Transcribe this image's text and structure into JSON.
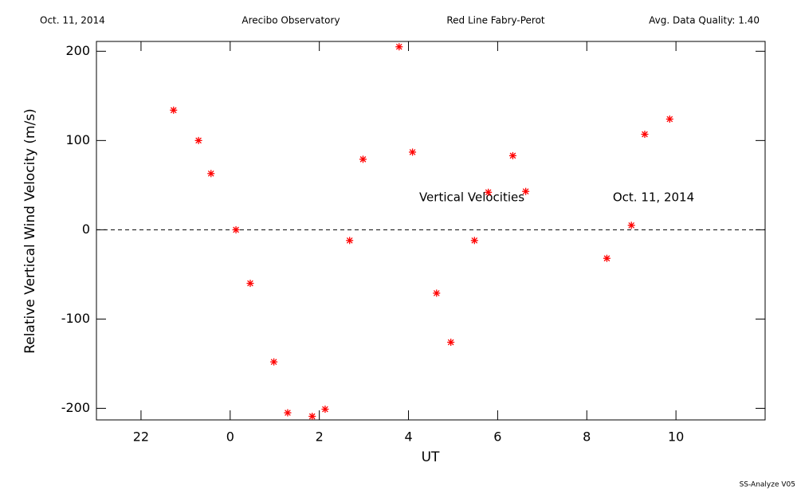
{
  "chart_data": {
    "type": "scatter",
    "header": [
      "Oct. 11, 2014",
      "Arecibo Observatory",
      "Red Line Fabry-Perot",
      "Avg. Data Quality: 1.40"
    ],
    "x_label": "UT",
    "y_label": "Relative Vertical Wind Velocity (m/s)",
    "annotations": [
      "Vertical Velocities",
      "Oct. 11, 2014"
    ],
    "footer": "SS-Analyze V05",
    "color": "#ff0000",
    "reference_line": 0,
    "xlim": [
      -3,
      12
    ],
    "ylim": [
      -213,
      211
    ],
    "xticks": [
      {
        "value": -2,
        "label": "22"
      },
      0,
      2,
      4,
      6,
      8,
      10
    ],
    "yticks": [
      -200,
      -100,
      0,
      100,
      200
    ],
    "x": [
      -1.27,
      -0.71,
      -0.43,
      0.13,
      0.45,
      0.98,
      1.29,
      1.84,
      2.13,
      2.68,
      2.98,
      3.79,
      4.09,
      4.63,
      4.95,
      5.48,
      5.79,
      6.34,
      6.63,
      8.45,
      9.0,
      9.3,
      9.86
    ],
    "values": [
      134,
      100,
      63,
      0,
      -60,
      -148,
      -205,
      -209,
      -201,
      -12,
      79,
      205,
      87,
      -71,
      -126,
      -12,
      42,
      83,
      43,
      -32,
      5,
      107,
      124
    ]
  }
}
